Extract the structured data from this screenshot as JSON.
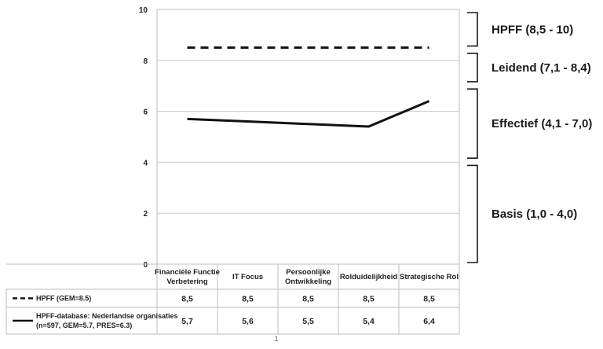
{
  "chart_data": {
    "type": "line",
    "categories": [
      "Financiële Functie Verbetering",
      "IT Focus",
      "Persoonlijke Ontwikkeling",
      "Rolduidelijkheid",
      "Strategische Rol"
    ],
    "category_lines": [
      [
        "Financiële Functie",
        "Verbetering"
      ],
      [
        "IT Focus"
      ],
      [
        "Persoonlijke",
        "Ontwikkeling"
      ],
      [
        "Rolduidelijkheid"
      ],
      [
        "Strategische Rol"
      ]
    ],
    "series": [
      {
        "name": "HPFF (GEM=8.5)",
        "legend_lines": [
          "HPFF (GEM=8.5)"
        ],
        "style": "dashed",
        "values": [
          8.5,
          8.5,
          8.5,
          8.5,
          8.5
        ],
        "labels": [
          "8,5",
          "8,5",
          "8,5",
          "8,5",
          "8,5"
        ]
      },
      {
        "name": "HPFF-database: Nederlandse organisaties (n=597, GEM=5.7, PRES=6.3)",
        "legend_lines": [
          "HPFF-database: Nederlandse organisaties",
          "(n=597, GEM=5.7, PRES=6.3)"
        ],
        "style": "solid",
        "values": [
          5.7,
          5.6,
          5.5,
          5.4,
          6.4
        ],
        "labels": [
          "5,7",
          "5,6",
          "5,5",
          "5,4",
          "6,4"
        ]
      }
    ],
    "ylim": [
      0,
      10
    ],
    "yticks": [
      0,
      2,
      4,
      6,
      8,
      10
    ],
    "grid": true,
    "legend": "table-below",
    "bands": [
      {
        "label": "HPFF (8,5 - 10)",
        "range": [
          8.5,
          10
        ]
      },
      {
        "label": "Leidend (7,1 - 8,4)",
        "range": [
          7.1,
          8.4
        ]
      },
      {
        "label": "Effectief (4,1 - 7,0)",
        "range": [
          4.1,
          7.0
        ]
      },
      {
        "label": "Basis (1,0 - 4,0)",
        "range": [
          0,
          4.0
        ]
      }
    ],
    "line_color": "#111111",
    "grid_color": "#c8c8c8"
  },
  "footer": {
    "page_marker": "1"
  }
}
